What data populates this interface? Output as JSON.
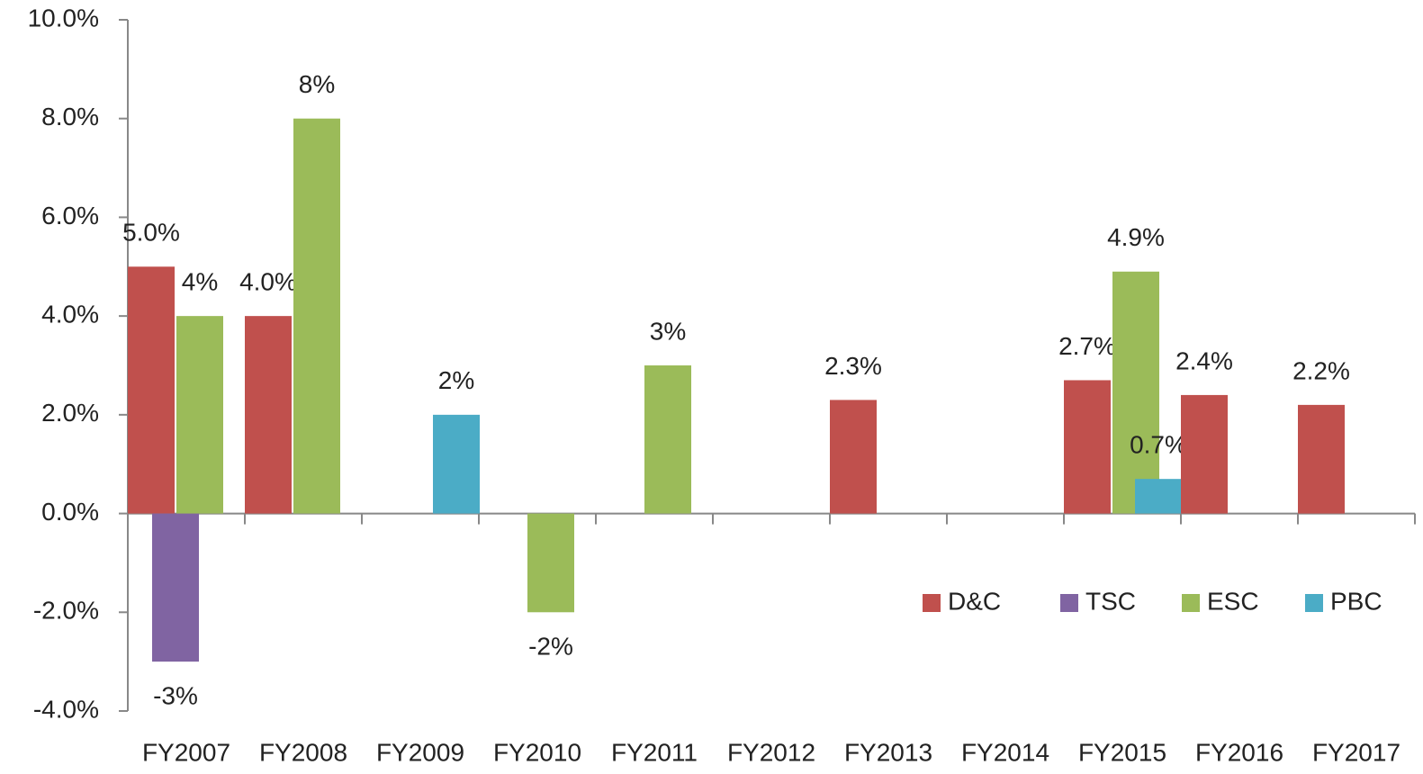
{
  "chart_data": {
    "type": "bar",
    "categories": [
      "FY2007",
      "FY2008",
      "FY2009",
      "FY2010",
      "FY2011",
      "FY2012",
      "FY2013",
      "FY2014",
      "FY2015",
      "FY2016",
      "FY2017"
    ],
    "series": [
      {
        "name": "D&C",
        "color": "#c0504d",
        "values": [
          5.0,
          4.0,
          null,
          null,
          null,
          null,
          2.3,
          null,
          2.7,
          2.4,
          2.2
        ],
        "value_labels": [
          "5.0%",
          "4.0%",
          null,
          null,
          null,
          null,
          "2.3%",
          null,
          "2.7%",
          "2.4%",
          "2.2%"
        ]
      },
      {
        "name": "TSC",
        "color": "#8064a2",
        "values": [
          -3,
          null,
          null,
          null,
          null,
          null,
          null,
          null,
          null,
          null,
          null
        ],
        "value_labels": [
          "-3%",
          null,
          null,
          null,
          null,
          null,
          null,
          null,
          null,
          null,
          null
        ]
      },
      {
        "name": "ESC",
        "color": "#9bbb59",
        "values": [
          4,
          8,
          null,
          -2,
          3,
          null,
          null,
          null,
          4.9,
          null,
          null
        ],
        "value_labels": [
          "4%",
          "8%",
          null,
          "-2%",
          "3%",
          null,
          null,
          null,
          "4.9%",
          null,
          null
        ]
      },
      {
        "name": "PBC",
        "color": "#4bacc6",
        "values": [
          null,
          null,
          2,
          null,
          null,
          null,
          null,
          null,
          0.7,
          null,
          null
        ],
        "value_labels": [
          null,
          null,
          "2%",
          null,
          null,
          null,
          null,
          null,
          "0.7%",
          null,
          null
        ]
      }
    ],
    "ylim": [
      -4,
      10
    ],
    "yticks": [
      {
        "value": -4,
        "label": "-4.0%"
      },
      {
        "value": -2,
        "label": "-2.0%"
      },
      {
        "value": 0,
        "label": "0.0%"
      },
      {
        "value": 2,
        "label": "2.0%"
      },
      {
        "value": 4,
        "label": "4.0%"
      },
      {
        "value": 6,
        "label": "6.0%"
      },
      {
        "value": 8,
        "label": "8.0%"
      },
      {
        "value": 10,
        "label": "10.0%"
      }
    ],
    "grid": false,
    "legend": "lower right"
  }
}
